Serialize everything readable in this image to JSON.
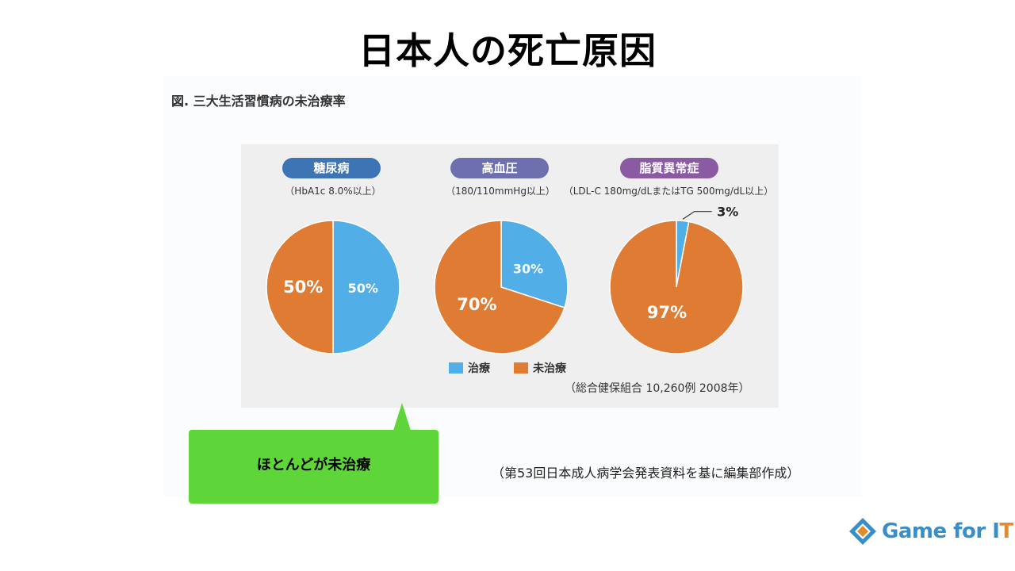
{
  "slide": {
    "title": "日本人の死亡原因"
  },
  "figure": {
    "caption": "図. 三大生活習慣病の未治療率",
    "source_note": "（総合健保組合  10,260例  2008年）"
  },
  "callout": {
    "text": "ほとんどが未治療"
  },
  "reference": "（第53回日本成人病学会発表資料を基に編集部作成）",
  "logo": {
    "text_main": "Game for I",
    "text_accent": "T"
  },
  "colors": {
    "treated": "#52aee6",
    "untreated": "#e07b33",
    "pill_diabetes": "#3d74b3",
    "pill_hypertension": "#6e6fae",
    "pill_lipid": "#8a5ba2",
    "callout": "#5ed63a"
  },
  "chart_data": [
    {
      "type": "pie",
      "title": "糖尿病",
      "subtitle": "（HbA1c 8.0%以上）",
      "slices": [
        {
          "name": "治療",
          "value": 50,
          "label": "50%"
        },
        {
          "name": "未治療",
          "value": 50,
          "label": "50%"
        }
      ]
    },
    {
      "type": "pie",
      "title": "高血圧",
      "subtitle": "（180/110mmHg以上）",
      "slices": [
        {
          "name": "治療",
          "value": 30,
          "label": "30%"
        },
        {
          "name": "未治療",
          "value": 70,
          "label": "70%"
        }
      ]
    },
    {
      "type": "pie",
      "title": "脂質異常症",
      "subtitle": "（LDL-C 180mg/dLまたはTG 500mg/dL以上）",
      "slices": [
        {
          "name": "治療",
          "value": 3,
          "label": "3%"
        },
        {
          "name": "未治療",
          "value": 97,
          "label": "97%"
        }
      ]
    }
  ],
  "legend": [
    {
      "name": "治療"
    },
    {
      "name": "未治療"
    }
  ]
}
